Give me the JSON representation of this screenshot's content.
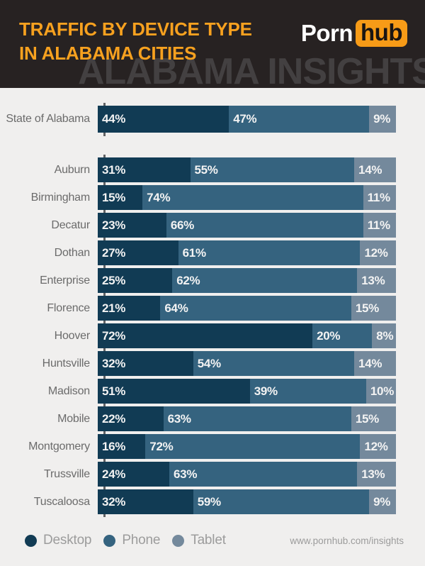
{
  "header": {
    "title_line1": "TRAFFIC BY DEVICE TYPE",
    "title_line2": "IN ALABAMA CITIES",
    "watermark": "ALABAMA INSIGHTS",
    "logo_part1": "Porn",
    "logo_part2": "hub"
  },
  "footer": {
    "url": "www.pornhub.com/insights"
  },
  "legend": {
    "items": [
      {
        "label": "Desktop",
        "color": "#113b54"
      },
      {
        "label": "Phone",
        "color": "#35637f"
      },
      {
        "label": "Tablet",
        "color": "#74899c"
      }
    ]
  },
  "colors": {
    "desktop": "#113b54",
    "phone": "#35637f",
    "tablet": "#74899c",
    "header_bg": "#272222",
    "title_orange": "#f7a11f",
    "chart_bg": "#f0efee",
    "axis_line": "#616264"
  },
  "chart_data": {
    "type": "bar",
    "orientation": "horizontal-stacked",
    "title": "Traffic by Device Type in Alabama Cities",
    "unit": "%",
    "xlim": [
      0,
      100
    ],
    "series_names": [
      "Desktop",
      "Phone",
      "Tablet"
    ],
    "state_row": {
      "label": "State of Alabama",
      "values": [
        44,
        47,
        9
      ]
    },
    "city_rows": [
      {
        "label": "Auburn",
        "values": [
          31,
          55,
          14
        ]
      },
      {
        "label": "Birmingham",
        "values": [
          15,
          74,
          11
        ]
      },
      {
        "label": "Decatur",
        "values": [
          23,
          66,
          11
        ]
      },
      {
        "label": "Dothan",
        "values": [
          27,
          61,
          12
        ]
      },
      {
        "label": "Enterprise",
        "values": [
          25,
          62,
          13
        ]
      },
      {
        "label": "Florence",
        "values": [
          21,
          64,
          15
        ]
      },
      {
        "label": "Hoover",
        "values": [
          72,
          20,
          8
        ]
      },
      {
        "label": "Huntsville",
        "values": [
          32,
          54,
          14
        ]
      },
      {
        "label": "Madison",
        "values": [
          51,
          39,
          10
        ]
      },
      {
        "label": "Mobile",
        "values": [
          22,
          63,
          15
        ]
      },
      {
        "label": "Montgomery",
        "values": [
          16,
          72,
          12
        ]
      },
      {
        "label": "Trussville",
        "values": [
          24,
          63,
          13
        ]
      },
      {
        "label": "Tuscaloosa",
        "values": [
          32,
          59,
          9
        ]
      }
    ]
  }
}
